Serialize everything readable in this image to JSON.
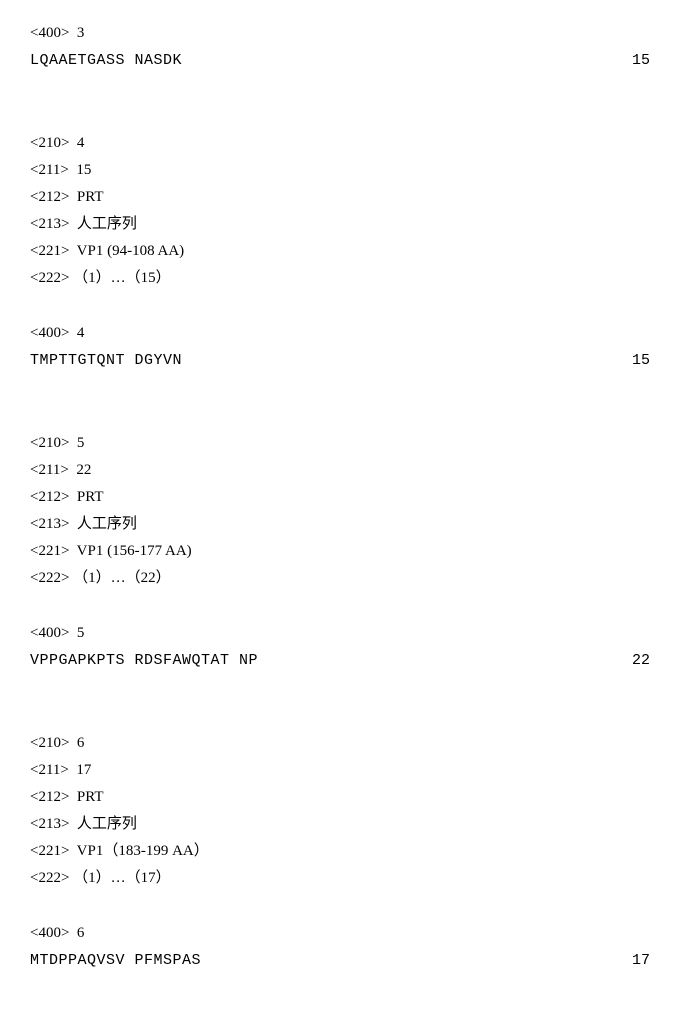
{
  "entries": [
    {
      "tag400": "<400>  3",
      "sequence": "LQAAETGASS NASDK",
      "seqlen": "15",
      "header": null
    },
    {
      "header": [
        "<210>  4",
        "<211>  15",
        "<212>  PRT",
        "<213>  人工序列",
        "<221>  VP1 (94-108 AA)",
        "<222> （1）…（15）"
      ],
      "tag400": "<400>  4",
      "sequence": "TMPTTGTQNT DGYVN",
      "seqlen": "15"
    },
    {
      "header": [
        "<210>  5",
        "<211>  22",
        "<212>  PRT",
        "<213>  人工序列",
        "<221>  VP1 (156-177 AA)",
        "<222> （1）…（22）"
      ],
      "tag400": "<400>  5",
      "sequence": "VPPGAPKPTS RDSFAWQTAT NP",
      "seqlen": "22"
    },
    {
      "header": [
        "<210>  6",
        "<211>  17",
        "<212>  PRT",
        "<213>  人工序列",
        "<221>  VP1（183-199 AA）",
        "<222> （1）…（17）"
      ],
      "tag400": "<400>  6",
      "sequence": "MTDPPAQVSV PFMSPAS",
      "seqlen": "17"
    }
  ]
}
